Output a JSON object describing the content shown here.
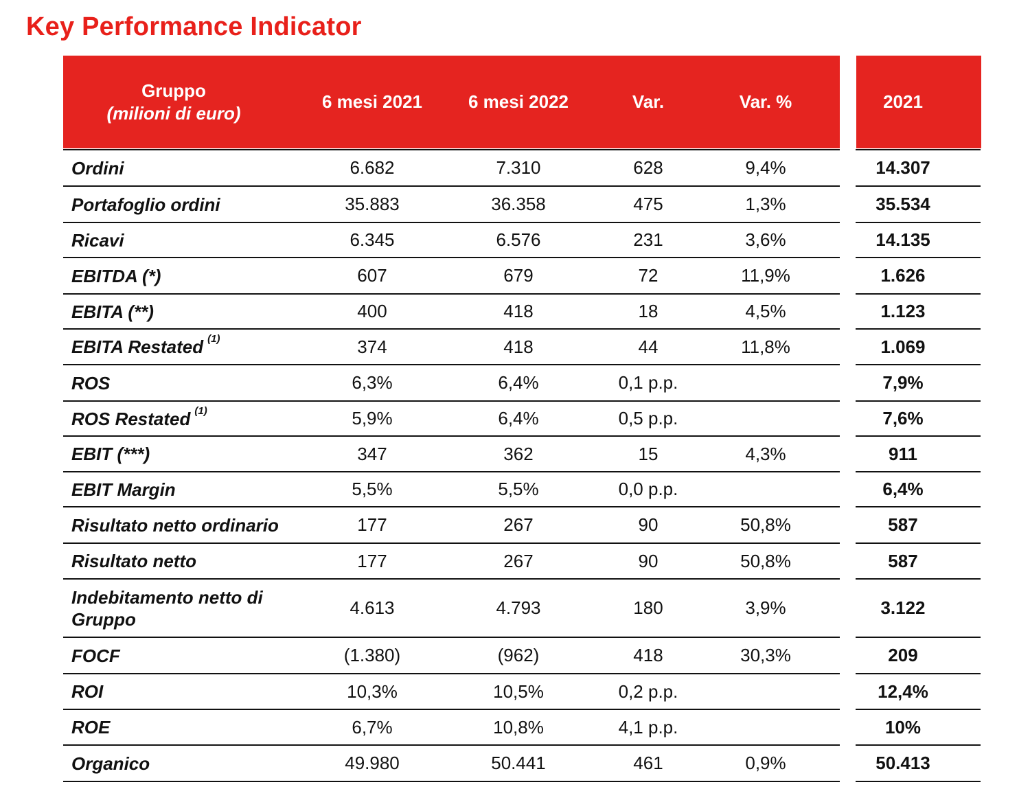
{
  "title": "Key Performance Indicator",
  "colors": {
    "accent": "#e52420",
    "title": "#e8201a"
  },
  "header": {
    "col_group": "Gruppo",
    "col_group_sub": "(milioni di euro)",
    "col_h1_2021": "6 mesi 2021",
    "col_h1_2022": "6 mesi 2022",
    "col_var": "Var.",
    "col_var_pct": "Var. %",
    "col_fy_2021": "2021"
  },
  "rows": [
    {
      "label": "Ordini",
      "sup": "",
      "h1_2021": "6.682",
      "h1_2022": "7.310",
      "var": "628",
      "var_pct": "9,4%",
      "fy_2021": "14.307"
    },
    {
      "label": "Portafoglio ordini",
      "sup": "",
      "h1_2021": "35.883",
      "h1_2022": "36.358",
      "var": "475",
      "var_pct": "1,3%",
      "fy_2021": "35.534"
    },
    {
      "label": "Ricavi",
      "sup": "",
      "h1_2021": "6.345",
      "h1_2022": "6.576",
      "var": "231",
      "var_pct": "3,6%",
      "fy_2021": "14.135"
    },
    {
      "label": "EBITDA (*)",
      "sup": "",
      "h1_2021": "607",
      "h1_2022": "679",
      "var": "72",
      "var_pct": "11,9%",
      "fy_2021": "1.626"
    },
    {
      "label": "EBITA (**)",
      "sup": "",
      "h1_2021": "400",
      "h1_2022": "418",
      "var": "18",
      "var_pct": "4,5%",
      "fy_2021": "1.123"
    },
    {
      "label": "EBITA Restated",
      "sup": "(1)",
      "h1_2021": "374",
      "h1_2022": "418",
      "var": "44",
      "var_pct": "11,8%",
      "fy_2021": "1.069"
    },
    {
      "label": "ROS",
      "sup": "",
      "h1_2021": "6,3%",
      "h1_2022": "6,4%",
      "var": "0,1 p.p.",
      "var_pct": "",
      "fy_2021": "7,9%"
    },
    {
      "label": "ROS Restated",
      "sup": "(1)",
      "h1_2021": "5,9%",
      "h1_2022": "6,4%",
      "var": "0,5 p.p.",
      "var_pct": "",
      "fy_2021": "7,6%"
    },
    {
      "label": "EBIT (***)",
      "sup": "",
      "h1_2021": "347",
      "h1_2022": "362",
      "var": "15",
      "var_pct": "4,3%",
      "fy_2021": "911"
    },
    {
      "label": "EBIT Margin",
      "sup": "",
      "h1_2021": "5,5%",
      "h1_2022": "5,5%",
      "var": "0,0 p.p.",
      "var_pct": "",
      "fy_2021": "6,4%"
    },
    {
      "label": "Risultato netto ordinario",
      "sup": "",
      "h1_2021": "177",
      "h1_2022": "267",
      "var": "90",
      "var_pct": "50,8%",
      "fy_2021": "587"
    },
    {
      "label": "Risultato netto",
      "sup": "",
      "h1_2021": "177",
      "h1_2022": "267",
      "var": "90",
      "var_pct": "50,8%",
      "fy_2021": "587"
    },
    {
      "label": "Indebitamento netto di Gruppo",
      "sup": "",
      "h1_2021": "4.613",
      "h1_2022": "4.793",
      "var": "180",
      "var_pct": "3,9%",
      "fy_2021": "3.122"
    },
    {
      "label": "FOCF",
      "sup": "",
      "h1_2021": "(1.380)",
      "h1_2022": "(962)",
      "var": "418",
      "var_pct": "30,3%",
      "fy_2021": "209"
    },
    {
      "label": "ROI",
      "sup": "",
      "h1_2021": "10,3%",
      "h1_2022": "10,5%",
      "var": "0,2 p.p.",
      "var_pct": "",
      "fy_2021": "12,4%"
    },
    {
      "label": "ROE",
      "sup": "",
      "h1_2021": "6,7%",
      "h1_2022": "10,8%",
      "var": "4,1 p.p.",
      "var_pct": "",
      "fy_2021": "10%"
    },
    {
      "label": "Organico",
      "sup": "",
      "h1_2021": "49.980",
      "h1_2022": "50.441",
      "var": "461",
      "var_pct": "0,9%",
      "fy_2021": "50.413"
    }
  ]
}
